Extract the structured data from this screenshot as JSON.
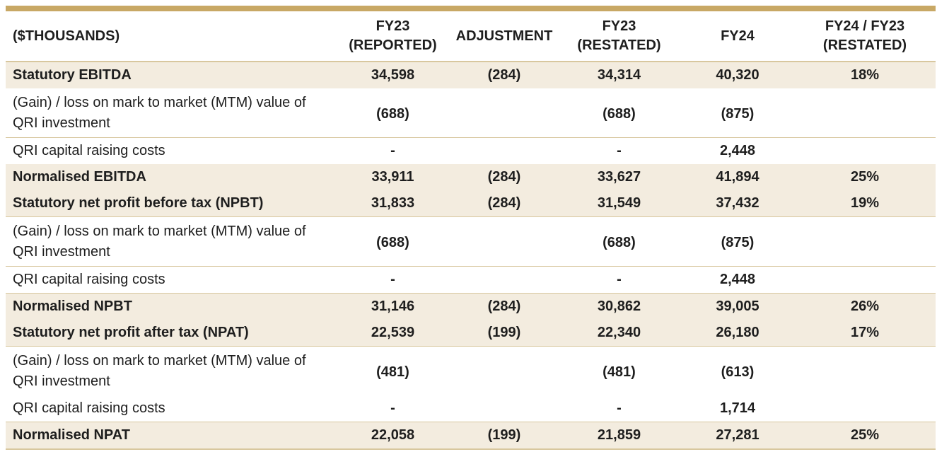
{
  "table": {
    "headers": [
      [
        "($THOUSANDS)"
      ],
      [
        "FY23",
        "(REPORTED)"
      ],
      [
        "ADJUSTMENT"
      ],
      [
        "FY23",
        "(RESTATED)"
      ],
      [
        "FY24"
      ],
      [
        "FY24 / FY23",
        "(RESTATED)"
      ]
    ],
    "rows": [
      {
        "label": "Statutory EBITDA",
        "values": [
          "34,598",
          "(284)",
          "34,314",
          "40,320",
          "18%"
        ],
        "shaded": true
      },
      {
        "label": "(Gain) / loss on mark to market (MTM) value of QRI investment",
        "values": [
          "(688)",
          "",
          "(688)",
          "(875)",
          ""
        ],
        "shaded": false
      },
      {
        "label": "QRI capital raising costs",
        "values": [
          "-",
          "",
          "-",
          "2,448",
          ""
        ],
        "shaded": false
      },
      {
        "label": "Normalised EBITDA",
        "values": [
          "33,911",
          "(284)",
          "33,627",
          "41,894",
          "25%"
        ],
        "shaded": true
      },
      {
        "label": "Statutory net profit before tax (NPBT)",
        "values": [
          "31,833",
          "(284)",
          "31,549",
          "37,432",
          "19%"
        ],
        "shaded": true
      },
      {
        "label": "(Gain) / loss on mark to market (MTM) value of QRI investment",
        "values": [
          "(688)",
          "",
          "(688)",
          "(875)",
          ""
        ],
        "shaded": false
      },
      {
        "label": "QRI capital raising costs",
        "values": [
          "-",
          "",
          "-",
          "2,448",
          ""
        ],
        "shaded": false
      },
      {
        "label": "Normalised NPBT",
        "values": [
          "31,146",
          "(284)",
          "30,862",
          "39,005",
          "26%"
        ],
        "shaded": true
      },
      {
        "label": "Statutory net profit after tax (NPAT)",
        "values": [
          "22,539",
          "(199)",
          "22,340",
          "26,180",
          "17%"
        ],
        "shaded": true
      },
      {
        "label": "(Gain) / loss on mark to market (MTM) value of QRI investment",
        "values": [
          "(481)",
          "",
          "(481)",
          "(613)",
          ""
        ],
        "shaded": false
      },
      {
        "label": "QRI capital raising costs",
        "values": [
          "-",
          "",
          "-",
          "1,714",
          ""
        ],
        "shaded": false
      },
      {
        "label": "Normalised NPAT",
        "values": [
          "22,058",
          "(199)",
          "21,859",
          "27,281",
          "25%"
        ],
        "shaded": true
      }
    ]
  },
  "colors": {
    "rule": "#c8a865",
    "shade": "#f3ecdf",
    "border": "#d8c79e"
  }
}
